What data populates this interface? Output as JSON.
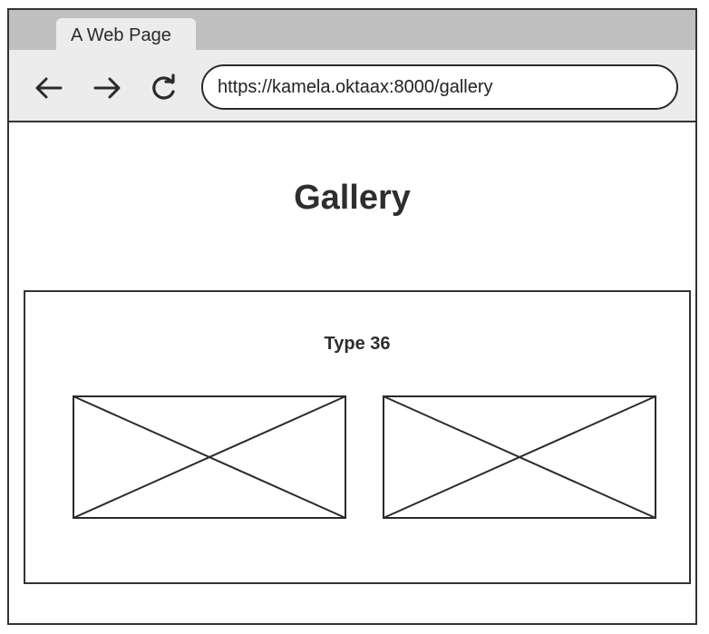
{
  "browser": {
    "tab_title": "A Web Page",
    "url": "https://kamela.oktaax:8000/gallery",
    "icons": {
      "back": "arrow-left-icon",
      "forward": "arrow-right-icon",
      "reload": "reload-icon"
    }
  },
  "page": {
    "title": "Gallery"
  },
  "gallery": {
    "type_label": "Type 36",
    "images": [
      {
        "kind": "image-placeholder"
      },
      {
        "kind": "image-placeholder"
      }
    ]
  }
}
